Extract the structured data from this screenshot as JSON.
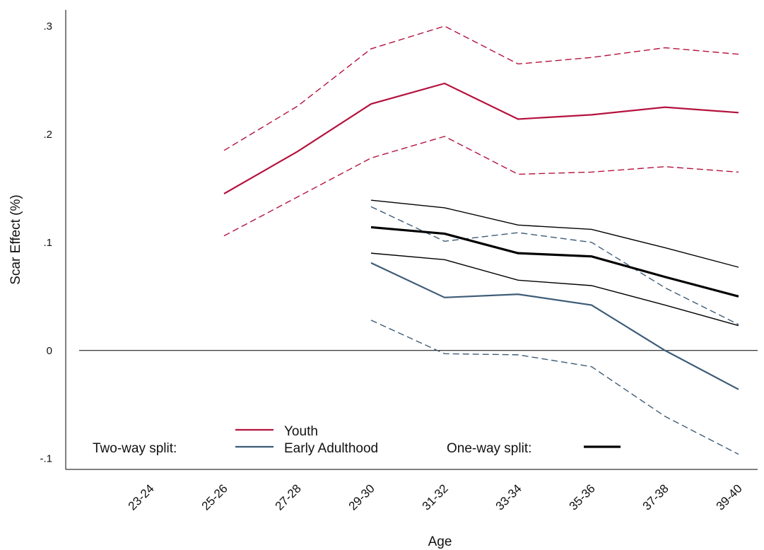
{
  "chart_data": {
    "type": "line",
    "xlabel": "Age",
    "ylabel": "Scar Effect (%)",
    "categories": [
      "23-24",
      "25-26",
      "27-28",
      "29-30",
      "31-32",
      "33-34",
      "35-36",
      "37-38",
      "39-40"
    ],
    "ylim": [
      -0.11,
      0.315
    ],
    "y_ticks": [
      -0.1,
      0,
      0.1,
      0.2,
      0.3
    ],
    "y_tick_labels": [
      "-.1",
      "0",
      ".1",
      ".2",
      ".3"
    ],
    "reference_line_y": 0,
    "grid": false,
    "series": [
      {
        "name": "Youth",
        "color": "#b5123e",
        "style": "solid",
        "width": 2.2,
        "values": [
          null,
          0.145,
          0.184,
          0.228,
          0.247,
          0.214,
          0.218,
          0.225,
          0.22
        ]
      },
      {
        "color": "#b5123e",
        "style": "dashed",
        "width": 1.4,
        "values": [
          null,
          0.185,
          0.226,
          0.279,
          0.3,
          0.265,
          0.271,
          0.28,
          0.274
        ]
      },
      {
        "color": "#b5123e",
        "style": "dashed",
        "width": 1.4,
        "values": [
          null,
          0.106,
          0.142,
          0.178,
          0.198,
          0.163,
          0.165,
          0.17,
          0.165
        ]
      },
      {
        "name": "Early Adulthood",
        "color": "#3e5c78",
        "style": "solid",
        "width": 2.2,
        "values": [
          null,
          null,
          null,
          0.081,
          0.049,
          0.052,
          0.042,
          0.0,
          -0.036
        ]
      },
      {
        "color": "#3e5c78",
        "style": "dashed",
        "width": 1.4,
        "values": [
          null,
          null,
          null,
          0.133,
          0.101,
          0.109,
          0.1,
          0.058,
          0.024
        ]
      },
      {
        "color": "#3e5c78",
        "style": "dashed",
        "width": 1.4,
        "values": [
          null,
          null,
          null,
          0.028,
          -0.003,
          -0.004,
          -0.015,
          -0.061,
          -0.096
        ]
      },
      {
        "color": "#000000",
        "style": "solid",
        "width": 3.2,
        "values": [
          null,
          null,
          null,
          0.114,
          0.108,
          0.09,
          0.087,
          0.068,
          0.05
        ]
      },
      {
        "color": "#000000",
        "style": "solid",
        "width": 1.4,
        "values": [
          null,
          null,
          null,
          0.139,
          0.132,
          0.116,
          0.112,
          0.095,
          0.077
        ]
      },
      {
        "color": "#000000",
        "style": "solid",
        "width": 1.4,
        "values": [
          null,
          null,
          null,
          0.09,
          0.084,
          0.065,
          0.06,
          0.042,
          0.023
        ]
      }
    ],
    "legend": {
      "two_way_label": "Two-way split:",
      "one_way_label": "One-way split:",
      "entries": [
        {
          "label": "Youth",
          "color": "#b5123e"
        },
        {
          "label": "Early Adulthood",
          "color": "#3e5c78"
        }
      ],
      "one_way_color": "#000000"
    }
  }
}
